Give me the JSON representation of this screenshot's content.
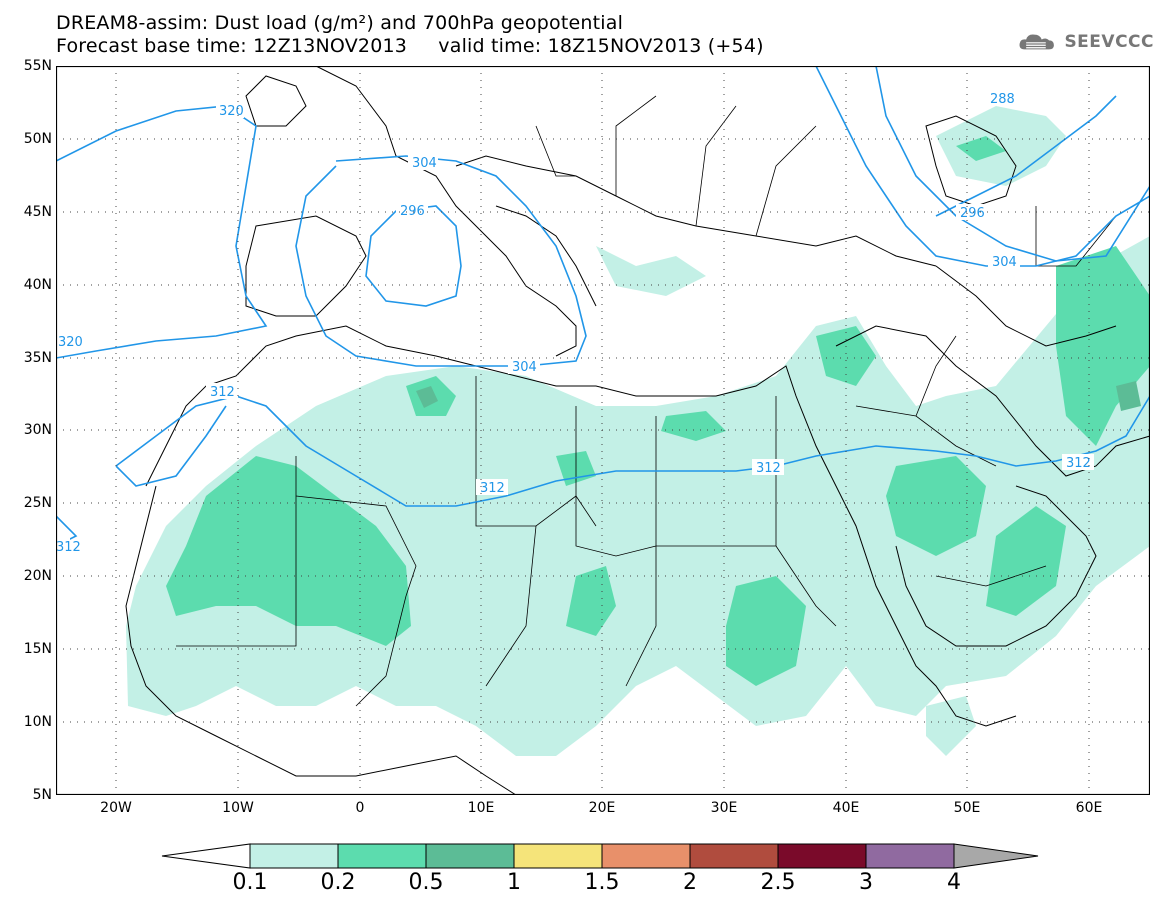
{
  "header": {
    "title_line1": "DREAM8-assim: Dust load (g/m²) and 700hPa geopotential",
    "title_line2": "Forecast base time: 12Z13NOV2013     valid time: 18Z15NOV2013 (+54)",
    "logo_text": "SEEVCCC"
  },
  "map": {
    "lat_labels": [
      "55N",
      "50N",
      "45N",
      "40N",
      "35N",
      "30N",
      "25N",
      "20N",
      "15N",
      "10N",
      "5N"
    ],
    "lon_labels": [
      "20W",
      "10W",
      "0",
      "10E",
      "20E",
      "30E",
      "40E",
      "50E",
      "60E"
    ],
    "contour_labels": [
      "320",
      "304",
      "296",
      "320",
      "312",
      "304",
      "312",
      "312",
      "312",
      "304",
      "296",
      "288",
      "312"
    ],
    "dust_colors": {
      "c01": "#c3f0e6",
      "c02": "#5cdcae",
      "c05": "#5cbc96"
    },
    "contour_color": "#2196e8",
    "border_color": "#000000"
  },
  "colorbar": {
    "labels": [
      "0.1",
      "0.2",
      "0.5",
      "1",
      "1.5",
      "2",
      "2.5",
      "3",
      "4"
    ],
    "colors": [
      "#ffffff",
      "#c3f0e6",
      "#5cdcae",
      "#5cbc96",
      "#f5e47a",
      "#e8906a",
      "#b04c3e",
      "#7a0a2a",
      "#906aa0",
      "#a8a8a8"
    ]
  }
}
